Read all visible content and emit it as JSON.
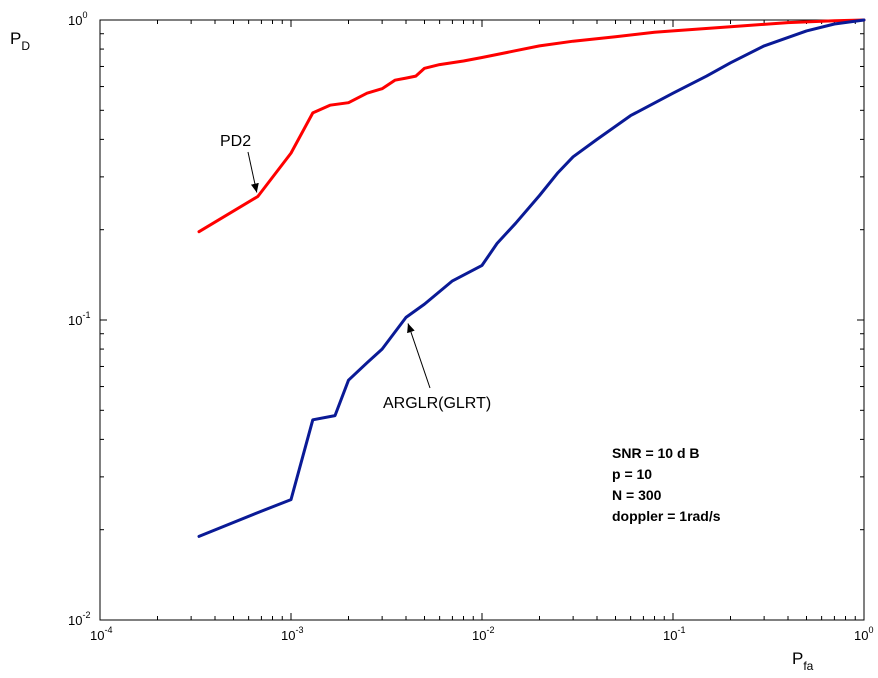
{
  "chart_data": {
    "type": "line",
    "xscale": "log",
    "yscale": "log",
    "xlim": [
      0.0001,
      1
    ],
    "ylim": [
      0.01,
      1
    ],
    "grid": false,
    "x_ticks": [
      {
        "base": "10",
        "exp": "-4",
        "value": 0.0001
      },
      {
        "base": "10",
        "exp": "-3",
        "value": 0.001
      },
      {
        "base": "10",
        "exp": "-2",
        "value": 0.01
      },
      {
        "base": "10",
        "exp": "-1",
        "value": 0.1
      },
      {
        "base": "10",
        "exp": "0",
        "value": 1
      }
    ],
    "y_ticks": [
      {
        "base": "10",
        "exp": "-2",
        "value": 0.01
      },
      {
        "base": "10",
        "exp": "-1",
        "value": 0.1
      },
      {
        "base": "10",
        "exp": "0",
        "value": 1
      }
    ],
    "xlabel": {
      "main": "P",
      "sub": "fa"
    },
    "ylabel": {
      "main": "P",
      "sub": "D"
    },
    "series": [
      {
        "name": "PD2",
        "color": "#ff0000",
        "points": [
          [
            0.00033,
            0.197
          ],
          [
            0.00067,
            0.258
          ],
          [
            0.001,
            0.36
          ],
          [
            0.0013,
            0.49
          ],
          [
            0.0016,
            0.52
          ],
          [
            0.002,
            0.53
          ],
          [
            0.0025,
            0.57
          ],
          [
            0.003,
            0.59
          ],
          [
            0.0035,
            0.63
          ],
          [
            0.004,
            0.64
          ],
          [
            0.0045,
            0.65
          ],
          [
            0.005,
            0.69
          ],
          [
            0.006,
            0.71
          ],
          [
            0.008,
            0.73
          ],
          [
            0.01,
            0.75
          ],
          [
            0.015,
            0.79
          ],
          [
            0.02,
            0.82
          ],
          [
            0.03,
            0.85
          ],
          [
            0.05,
            0.88
          ],
          [
            0.08,
            0.91
          ],
          [
            0.1,
            0.92
          ],
          [
            0.2,
            0.95
          ],
          [
            0.4,
            0.98
          ],
          [
            0.7,
            0.995
          ],
          [
            1,
            1
          ]
        ]
      },
      {
        "name": "ARGLR(GLRT)",
        "color": "#0a1a96",
        "points": [
          [
            0.00033,
            0.019
          ],
          [
            0.00067,
            0.0228
          ],
          [
            0.001,
            0.0252
          ],
          [
            0.0013,
            0.0465
          ],
          [
            0.0017,
            0.048
          ],
          [
            0.002,
            0.063
          ],
          [
            0.0025,
            0.072
          ],
          [
            0.003,
            0.08
          ],
          [
            0.004,
            0.102
          ],
          [
            0.005,
            0.113
          ],
          [
            0.007,
            0.135
          ],
          [
            0.01,
            0.152
          ],
          [
            0.012,
            0.18
          ],
          [
            0.015,
            0.21
          ],
          [
            0.02,
            0.26
          ],
          [
            0.025,
            0.31
          ],
          [
            0.03,
            0.35
          ],
          [
            0.04,
            0.4
          ],
          [
            0.06,
            0.48
          ],
          [
            0.1,
            0.57
          ],
          [
            0.15,
            0.65
          ],
          [
            0.2,
            0.72
          ],
          [
            0.3,
            0.82
          ],
          [
            0.5,
            0.92
          ],
          [
            0.7,
            0.97
          ],
          [
            1,
            1
          ]
        ]
      }
    ],
    "annotations": [
      {
        "text": "PD2",
        "series": "PD2",
        "arrow_to": [
          0.00067,
          0.258
        ]
      },
      {
        "text": "ARGLR(GLRT)",
        "series": "ARGLR(GLRT)",
        "arrow_to": [
          0.004,
          0.102
        ]
      }
    ],
    "notes": [
      "SNR  = 10 d B",
      "p = 10",
      "N = 300",
      "doppler = 1rad/s"
    ]
  }
}
